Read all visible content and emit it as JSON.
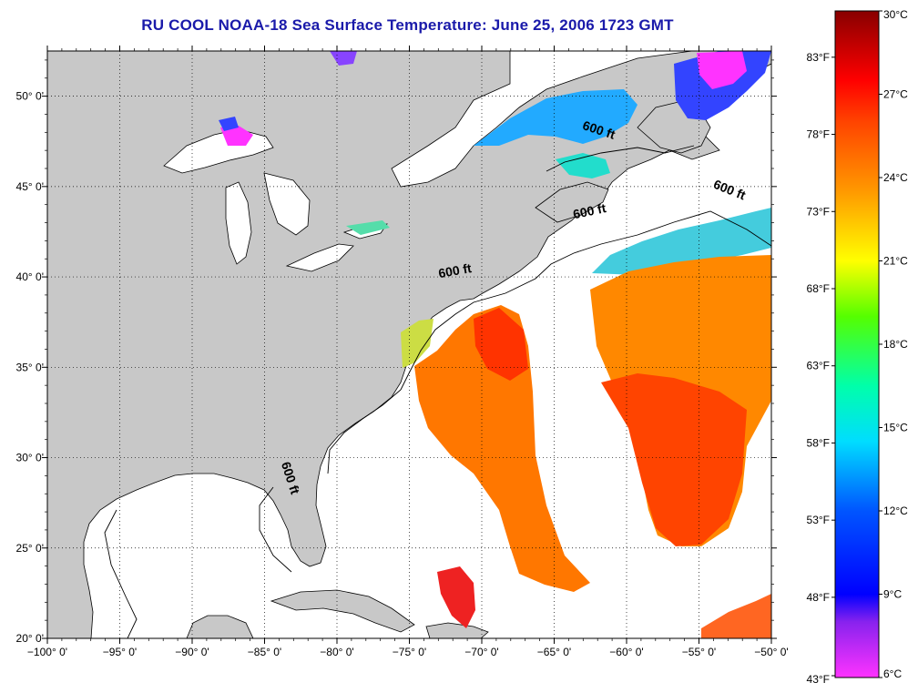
{
  "title": "RU COOL  NOAA-18  Sea Surface Temperature:  June 25, 2006 1723 GMT",
  "map": {
    "lon_range": [
      -100,
      -50
    ],
    "lat_range": [
      20,
      52.5
    ],
    "lon_ticks": [
      {
        "v": -100,
        "label": "−100° 0'"
      },
      {
        "v": -95,
        "label": "−95° 0'"
      },
      {
        "v": -90,
        "label": "−90° 0'"
      },
      {
        "v": -85,
        "label": "−85° 0'"
      },
      {
        "v": -80,
        "label": "−80° 0'"
      },
      {
        "v": -75,
        "label": "−75° 0'"
      },
      {
        "v": -70,
        "label": "−70° 0'"
      },
      {
        "v": -65,
        "label": "−65° 0'"
      },
      {
        "v": -60,
        "label": "−60° 0'"
      },
      {
        "v": -55,
        "label": "−55° 0'"
      },
      {
        "v": -50,
        "label": "−50° 0'"
      }
    ],
    "lat_ticks": [
      {
        "v": 20,
        "label": "20° 0'"
      },
      {
        "v": 25,
        "label": "25° 0'"
      },
      {
        "v": 30,
        "label": "30° 0'"
      },
      {
        "v": 35,
        "label": "35° 0'"
      },
      {
        "v": 40,
        "label": "40° 0'"
      },
      {
        "v": 45,
        "label": "45° 0'"
      },
      {
        "v": 50,
        "label": "50° 0'"
      }
    ],
    "grid": "dotted",
    "land_color": "#c8c8c8",
    "ocean_color": "#ffffff",
    "contour_labels": [
      {
        "text": "600 ft",
        "lon": -62,
        "lat": 47.9,
        "angle": 18
      },
      {
        "text": "600 ft",
        "lon": -53,
        "lat": 44.6,
        "angle": 22
      },
      {
        "text": "600 ft",
        "lon": -62.5,
        "lat": 43.4,
        "angle": -12
      },
      {
        "text": "600 ft",
        "lon": -71.8,
        "lat": 40.1,
        "angle": -10
      },
      {
        "text": "600 ft",
        "lon": -83.5,
        "lat": 28.8,
        "angle": 72
      }
    ]
  },
  "colorbar": {
    "celsius": [
      {
        "v": 30,
        "label": "30°C"
      },
      {
        "v": 27,
        "label": "27°C"
      },
      {
        "v": 24,
        "label": "24°C"
      },
      {
        "v": 21,
        "label": "21°C"
      },
      {
        "v": 18,
        "label": "18°C"
      },
      {
        "v": 15,
        "label": "15°C"
      },
      {
        "v": 12,
        "label": "12°C"
      },
      {
        "v": 9,
        "label": "9°C"
      },
      {
        "v": 6,
        "label": "6°C"
      }
    ],
    "fahrenheit": [
      {
        "v": 83,
        "label": "83°F"
      },
      {
        "v": 78,
        "label": "78°F"
      },
      {
        "v": 73,
        "label": "73°F"
      },
      {
        "v": 68,
        "label": "68°F"
      },
      {
        "v": 63,
        "label": "63°F"
      },
      {
        "v": 58,
        "label": "58°F"
      },
      {
        "v": 53,
        "label": "53°F"
      },
      {
        "v": 48,
        "label": "48°F"
      },
      {
        "v": 43,
        "label": "43°F"
      }
    ],
    "range_c": [
      6,
      30
    ],
    "stops": [
      {
        "c": 6,
        "color": "#ff33ff"
      },
      {
        "c": 8,
        "color": "#8822ee"
      },
      {
        "c": 9,
        "color": "#0000ff"
      },
      {
        "c": 12,
        "color": "#0055ff"
      },
      {
        "c": 14.5,
        "color": "#00ddff"
      },
      {
        "c": 16.5,
        "color": "#00ffaa"
      },
      {
        "c": 19,
        "color": "#55ff00"
      },
      {
        "c": 21,
        "color": "#ffff00"
      },
      {
        "c": 23.5,
        "color": "#ff9900"
      },
      {
        "c": 26,
        "color": "#ff4400"
      },
      {
        "c": 27.5,
        "color": "#ff0000"
      },
      {
        "c": 30,
        "color": "#880000"
      }
    ]
  }
}
